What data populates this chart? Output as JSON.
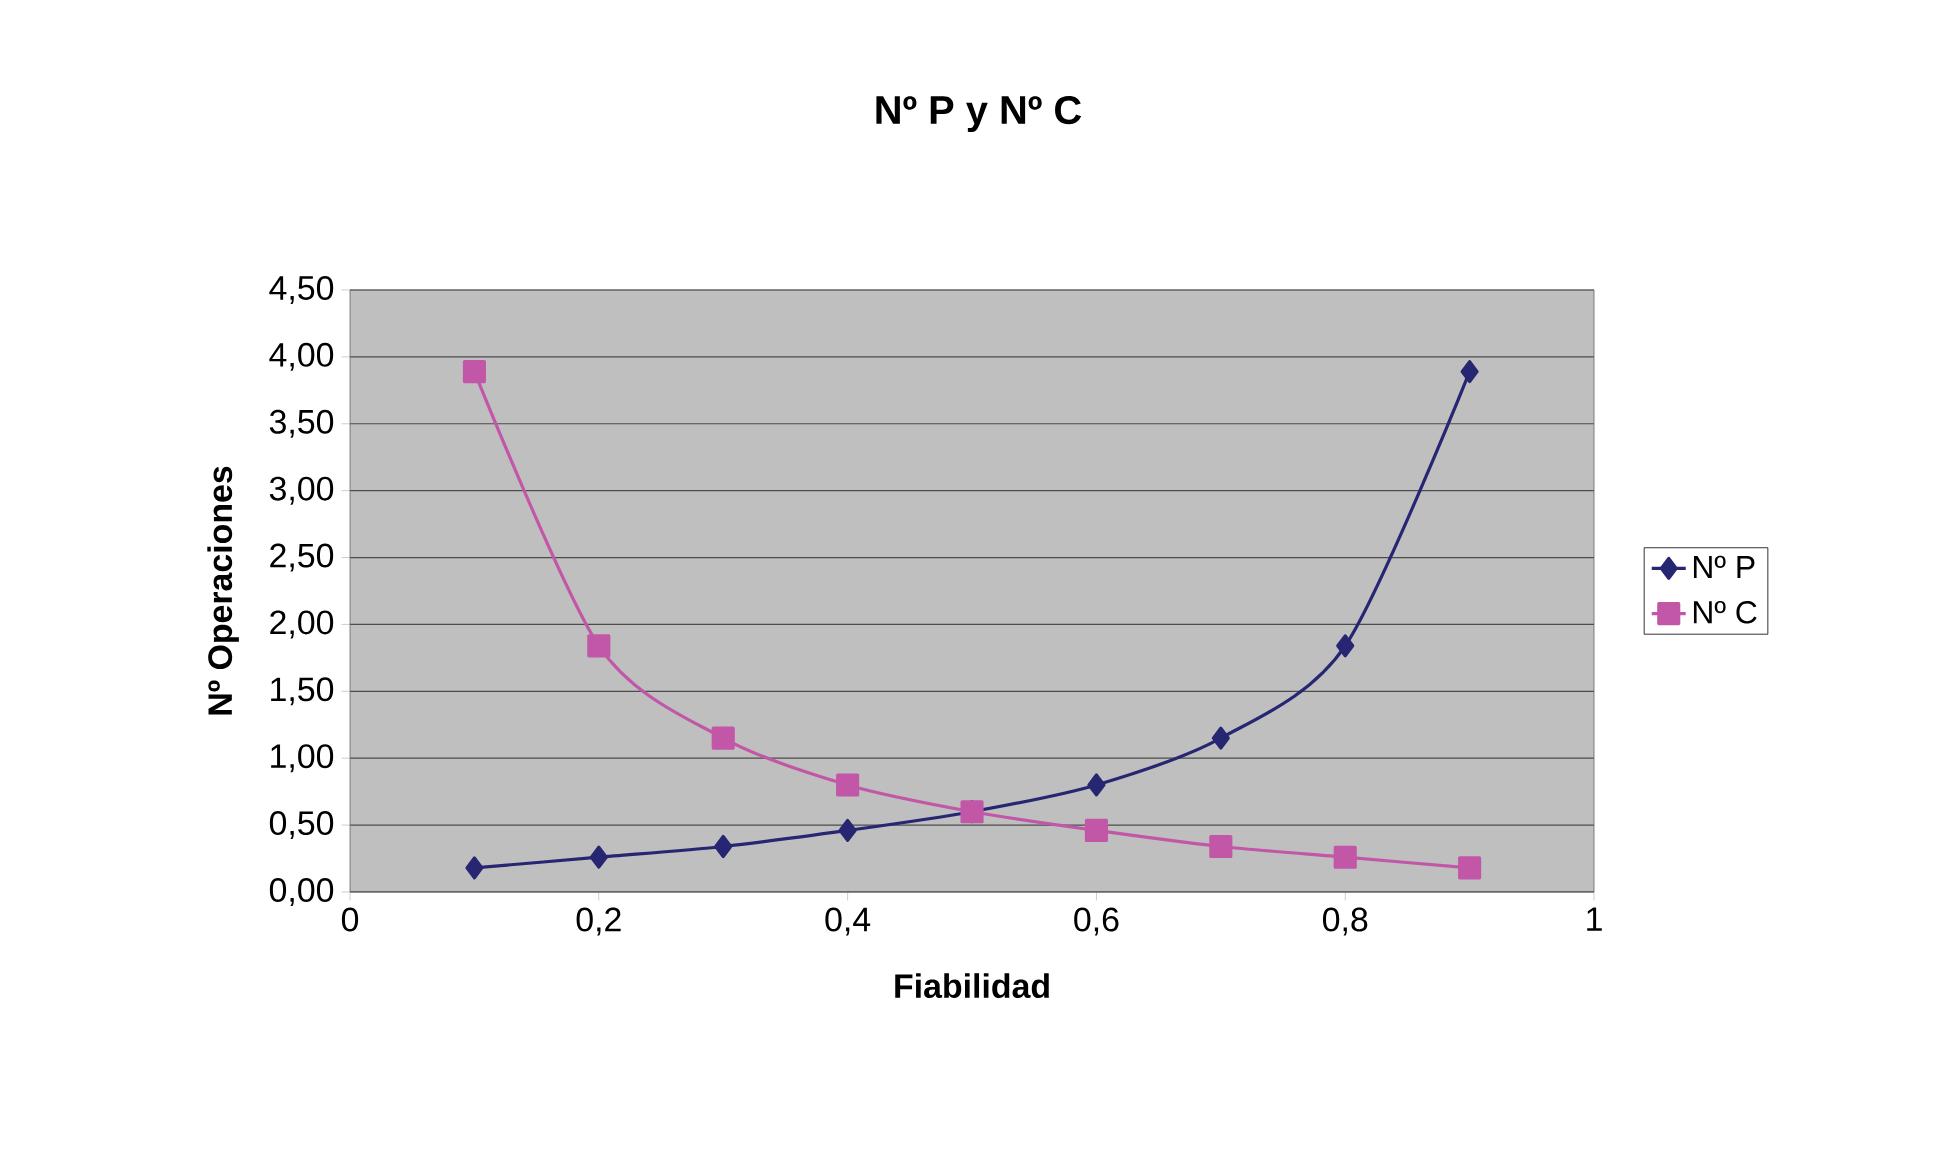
{
  "chart_data": {
    "type": "line",
    "title": "Nº P y Nº C",
    "xlabel": "Fiabilidad",
    "ylabel": "Nº Operaciones",
    "x": [
      0.1,
      0.2,
      0.3,
      0.4,
      0.5,
      0.6,
      0.7,
      0.8,
      0.9
    ],
    "series": [
      {
        "name": "Nº P",
        "color": "#262673",
        "marker": "diamond",
        "values": [
          0.18,
          0.26,
          0.34,
          0.46,
          0.6,
          0.8,
          1.15,
          1.84,
          3.89
        ]
      },
      {
        "name": "Nº C",
        "color": "#c257a8",
        "marker": "square",
        "values": [
          3.89,
          1.84,
          1.15,
          0.8,
          0.6,
          0.46,
          0.34,
          0.26,
          0.18
        ]
      }
    ],
    "xlim": [
      0,
      1
    ],
    "ylim": [
      0,
      4.5
    ],
    "xticks": [
      0,
      {
        "value": 0.2,
        "label": "0,2"
      },
      {
        "value": 0.4,
        "label": "0,4"
      },
      {
        "value": 0.6,
        "label": "0,6"
      },
      {
        "value": 0.8,
        "label": "0,8"
      },
      1
    ],
    "yticks": [
      {
        "value": 0,
        "label": "0,00"
      },
      {
        "value": 0.5,
        "label": "0,50"
      },
      {
        "value": 1,
        "label": "1,00"
      },
      {
        "value": 1.5,
        "label": "1,50"
      },
      {
        "value": 2,
        "label": "2,00"
      },
      {
        "value": 2.5,
        "label": "2,50"
      },
      {
        "value": 3,
        "label": "3,00"
      },
      {
        "value": 3.5,
        "label": "3,50"
      },
      {
        "value": 4,
        "label": "4,00"
      },
      {
        "value": 4.5,
        "label": "4,50"
      }
    ],
    "grid": "y",
    "legend": "right",
    "line_style": "solid"
  }
}
